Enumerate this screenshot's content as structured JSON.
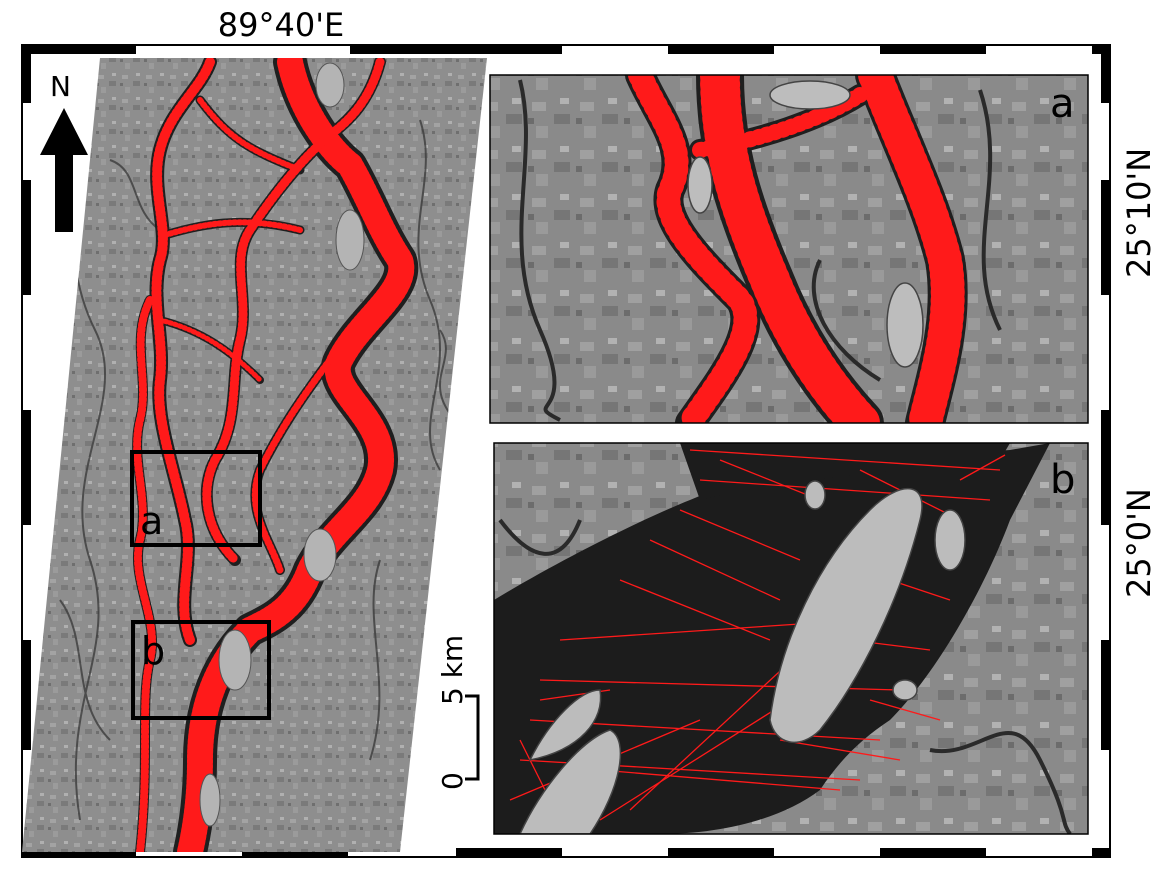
{
  "map": {
    "top_coordinate": "89°40'E",
    "right_coordinates": [
      "25°10'N",
      "25°0'N"
    ],
    "north_arrow_label": "N",
    "scale_bar": {
      "distance_label": "5 km",
      "zero_label": "0"
    },
    "insets": [
      {
        "id": "a",
        "label": "a"
      },
      {
        "id": "b",
        "label": "b"
      }
    ],
    "colors": {
      "frame": "#000000",
      "river_water": "#1f1f1f",
      "land": "#8c8c8c",
      "transects": "#ff1a1a",
      "box_outline": "#000000"
    }
  }
}
